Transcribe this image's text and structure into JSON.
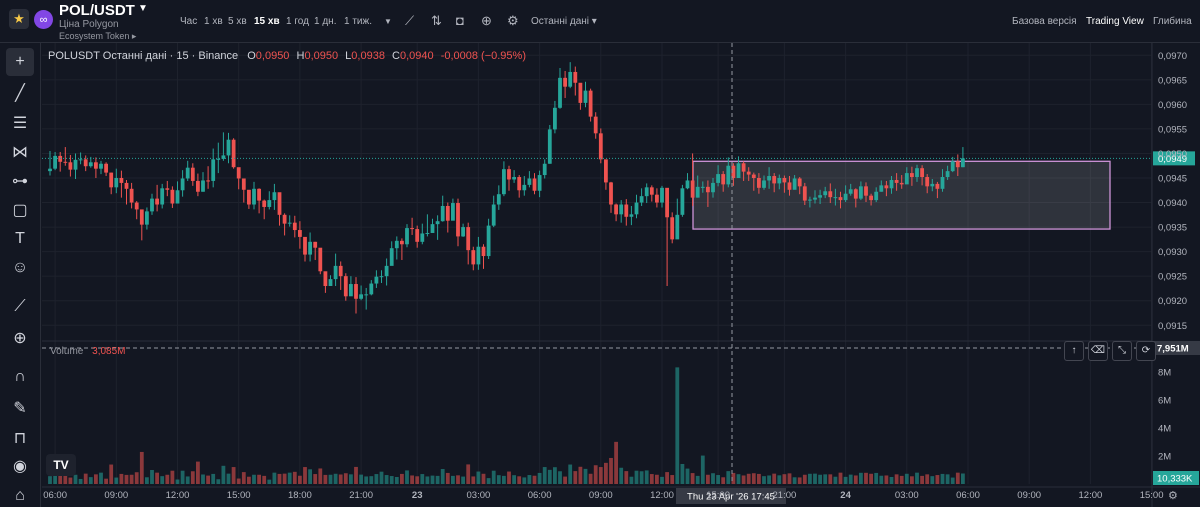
{
  "header": {
    "symbol": "POL/USDT",
    "subtitle": "Ціна Polygon",
    "ecosystem": "Ecosystem Token",
    "timeframes": [
      "Час",
      "1 хв",
      "5 хв",
      "15 хв",
      "1 год",
      "1 дн.",
      "1 тиж."
    ],
    "active_timeframe": "15 хв",
    "last_data": "Останні дані",
    "views": [
      "Базова версія",
      "Trading View",
      "Глибина"
    ],
    "active_view": "Trading View",
    "icons": [
      "star-icon",
      "polygon-logo-icon",
      "dropdown-icon",
      "indicators-icon",
      "compare-icon",
      "camera-icon",
      "add-icon",
      "settings-icon"
    ]
  },
  "legend": {
    "title": "POLUSDT Останні дані · 15 · Binance",
    "o_label": "O",
    "o_value": "0,0950",
    "h_label": "H",
    "h_value": "0,0950",
    "l_label": "L",
    "l_value": "0,0938",
    "c_label": "C",
    "c_value": "0,0940",
    "change": "-0,0008 (−0.95%)"
  },
  "volume_legend": {
    "label": "Volume",
    "value": "3,085M"
  },
  "toolbar": {
    "tools": [
      "crosshair-icon",
      "trendline-icon",
      "fib-icon",
      "pattern-icon",
      "forecast-icon",
      "rectangle-icon",
      "text-icon",
      "emoji-icon",
      "ruler-icon",
      "zoom-icon",
      "magnet-icon",
      "lock-draw-icon",
      "lock-icon",
      "eye-icon",
      "trash-icon"
    ]
  },
  "colors": {
    "up": "#26a69a",
    "down": "#ef5350",
    "background": "#131722",
    "grid": "#1e222d",
    "rect_fill": "rgba(255,255,255,0.12)",
    "rect_stroke": "#ce93d8"
  },
  "chart_data": {
    "type": "candlestick",
    "price_axis": {
      "ticks": [
        "0,0970",
        "0,0965",
        "0,0960",
        "0,0955",
        "0,0950",
        "0,0945",
        "0,0940",
        "0,0935",
        "0,0930",
        "0,0925",
        "0,0920",
        "0,0915"
      ],
      "range": [
        0.0912,
        0.09725
      ],
      "last_price_label": "0,0949",
      "last_price": 0.0949
    },
    "volume_axis": {
      "ticks": [
        "8M",
        "6M",
        "4M",
        "2M"
      ],
      "crosshair_value": "7,951M",
      "last_volume": "10,333K",
      "max": 9.0
    },
    "time_axis": {
      "ticks": [
        "06:00",
        "09:00",
        "12:00",
        "15:00",
        "18:00",
        "21:00",
        "23",
        "03:00",
        "06:00",
        "09:00",
        "12:00",
        "15:00",
        "21:00",
        "24",
        "03:00",
        "06:00",
        "09:00",
        "12:00",
        "15:00"
      ],
      "crosshair_label": "Thu 23 Apr '26   17:45"
    },
    "rectangle": {
      "price_top": 0.09484,
      "price_bottom": 0.09346
    },
    "candles": [
      {
        "c": 0.09469,
        "h": 0.09505,
        "l": 0.09455
      },
      {
        "c": 0.09495,
        "h": 0.09503,
        "l": 0.09466
      },
      {
        "c": 0.09483,
        "h": 0.09503,
        "l": 0.09463
      },
      {
        "c": 0.09482,
        "h": 0.09513,
        "l": 0.09475
      },
      {
        "c": 0.09467,
        "h": 0.09497,
        "l": 0.09453
      },
      {
        "c": 0.09487,
        "h": 0.095,
        "l": 0.09448
      },
      {
        "c": 0.09488,
        "h": 0.09502,
        "l": 0.09478
      },
      {
        "c": 0.09474,
        "h": 0.09496,
        "l": 0.09464
      },
      {
        "c": 0.09482,
        "h": 0.09493,
        "l": 0.09471
      },
      {
        "c": 0.09469,
        "h": 0.09492,
        "l": 0.0945
      },
      {
        "c": 0.09479,
        "h": 0.09485,
        "l": 0.09458
      },
      {
        "c": 0.09461,
        "h": 0.09482,
        "l": 0.09454
      },
      {
        "c": 0.09431,
        "h": 0.09461,
        "l": 0.09417
      },
      {
        "c": 0.0945,
        "h": 0.09469,
        "l": 0.09419
      },
      {
        "c": 0.0944,
        "h": 0.09465,
        "l": 0.0941
      },
      {
        "c": 0.09428,
        "h": 0.09446,
        "l": 0.09396
      },
      {
        "c": 0.094,
        "h": 0.0944,
        "l": 0.09388
      },
      {
        "c": 0.09386,
        "h": 0.09403,
        "l": 0.09366
      },
      {
        "c": 0.09355,
        "h": 0.09383,
        "l": 0.09323
      },
      {
        "c": 0.09382,
        "h": 0.0939,
        "l": 0.09345
      },
      {
        "c": 0.09408,
        "h": 0.09418,
        "l": 0.09375
      },
      {
        "c": 0.09396,
        "h": 0.09436,
        "l": 0.09382
      },
      {
        "c": 0.09429,
        "h": 0.09438,
        "l": 0.09388
      },
      {
        "c": 0.09426,
        "h": 0.09444,
        "l": 0.09413
      },
      {
        "c": 0.09398,
        "h": 0.09433,
        "l": 0.09389
      },
      {
        "c": 0.09425,
        "h": 0.09443,
        "l": 0.09409
      },
      {
        "c": 0.09449,
        "h": 0.09466,
        "l": 0.09412
      },
      {
        "c": 0.09471,
        "h": 0.09485,
        "l": 0.09444
      },
      {
        "c": 0.09444,
        "h": 0.0948,
        "l": 0.09434
      },
      {
        "c": 0.09422,
        "h": 0.09459,
        "l": 0.09413
      },
      {
        "c": 0.09445,
        "h": 0.09462,
        "l": 0.09422
      },
      {
        "c": 0.09444,
        "h": 0.09474,
        "l": 0.09428
      },
      {
        "c": 0.09488,
        "h": 0.0951,
        "l": 0.09431
      },
      {
        "c": 0.09489,
        "h": 0.09522,
        "l": 0.0946
      },
      {
        "c": 0.09496,
        "h": 0.09543,
        "l": 0.09485
      },
      {
        "c": 0.09528,
        "h": 0.09542,
        "l": 0.0948
      },
      {
        "c": 0.09472,
        "h": 0.09531,
        "l": 0.09469
      },
      {
        "c": 0.09449,
        "h": 0.09469,
        "l": 0.09427
      },
      {
        "c": 0.09426,
        "h": 0.09444,
        "l": 0.094
      },
      {
        "c": 0.09396,
        "h": 0.09422,
        "l": 0.09387
      },
      {
        "c": 0.09428,
        "h": 0.09442,
        "l": 0.09386
      },
      {
        "c": 0.09404,
        "h": 0.09429,
        "l": 0.09378
      },
      {
        "c": 0.09391,
        "h": 0.09406,
        "l": 0.09366
      },
      {
        "c": 0.09405,
        "h": 0.09423,
        "l": 0.09386
      },
      {
        "c": 0.09421,
        "h": 0.09438,
        "l": 0.09385
      },
      {
        "c": 0.09375,
        "h": 0.09419,
        "l": 0.09353
      },
      {
        "c": 0.09357,
        "h": 0.09378,
        "l": 0.09333
      },
      {
        "c": 0.09359,
        "h": 0.09374,
        "l": 0.09351
      },
      {
        "c": 0.09344,
        "h": 0.09373,
        "l": 0.09329
      },
      {
        "c": 0.0933,
        "h": 0.09362,
        "l": 0.09306
      },
      {
        "c": 0.09294,
        "h": 0.09328,
        "l": 0.0928
      },
      {
        "c": 0.0932,
        "h": 0.09339,
        "l": 0.0928
      },
      {
        "c": 0.09308,
        "h": 0.0932,
        "l": 0.09283
      },
      {
        "c": 0.0926,
        "h": 0.09301,
        "l": 0.09254
      },
      {
        "c": 0.0923,
        "h": 0.09259,
        "l": 0.09216
      },
      {
        "c": 0.09244,
        "h": 0.09252,
        "l": 0.09231
      },
      {
        "c": 0.09271,
        "h": 0.09296,
        "l": 0.0923
      },
      {
        "c": 0.0925,
        "h": 0.0928,
        "l": 0.09222
      },
      {
        "c": 0.09209,
        "h": 0.09256,
        "l": 0.092
      },
      {
        "c": 0.09234,
        "h": 0.0925,
        "l": 0.09215
      },
      {
        "c": 0.09204,
        "h": 0.09248,
        "l": 0.09174
      },
      {
        "c": 0.09213,
        "h": 0.09231,
        "l": 0.09201
      },
      {
        "c": 0.09213,
        "h": 0.09226,
        "l": 0.09182
      },
      {
        "c": 0.09235,
        "h": 0.09242,
        "l": 0.09211
      },
      {
        "c": 0.09249,
        "h": 0.09262,
        "l": 0.09226
      },
      {
        "c": 0.0925,
        "h": 0.09262,
        "l": 0.09236
      },
      {
        "c": 0.09271,
        "h": 0.09286,
        "l": 0.09231
      },
      {
        "c": 0.09307,
        "h": 0.09321,
        "l": 0.09278
      },
      {
        "c": 0.09322,
        "h": 0.09331,
        "l": 0.09284
      },
      {
        "c": 0.09315,
        "h": 0.09327,
        "l": 0.09283
      },
      {
        "c": 0.09348,
        "h": 0.09356,
        "l": 0.09309
      },
      {
        "c": 0.09346,
        "h": 0.09369,
        "l": 0.09334
      },
      {
        "c": 0.0932,
        "h": 0.09353,
        "l": 0.09308
      },
      {
        "c": 0.09337,
        "h": 0.09357,
        "l": 0.09315
      },
      {
        "c": 0.09338,
        "h": 0.09376,
        "l": 0.09331
      },
      {
        "c": 0.09356,
        "h": 0.09367,
        "l": 0.09346
      },
      {
        "c": 0.09362,
        "h": 0.09374,
        "l": 0.09324
      },
      {
        "c": 0.09393,
        "h": 0.09414,
        "l": 0.09361
      },
      {
        "c": 0.09363,
        "h": 0.094,
        "l": 0.09339
      },
      {
        "c": 0.09399,
        "h": 0.09408,
        "l": 0.09365
      },
      {
        "c": 0.09331,
        "h": 0.09408,
        "l": 0.09311
      },
      {
        "c": 0.0935,
        "h": 0.09357,
        "l": 0.0933
      },
      {
        "c": 0.09303,
        "h": 0.09359,
        "l": 0.09274
      },
      {
        "c": 0.09274,
        "h": 0.0931,
        "l": 0.09262
      },
      {
        "c": 0.0931,
        "h": 0.0933,
        "l": 0.09263
      },
      {
        "c": 0.09291,
        "h": 0.09315,
        "l": 0.09265
      },
      {
        "c": 0.09353,
        "h": 0.09367,
        "l": 0.09285
      },
      {
        "c": 0.09396,
        "h": 0.09414,
        "l": 0.0935
      },
      {
        "c": 0.09417,
        "h": 0.09435,
        "l": 0.09385
      },
      {
        "c": 0.09468,
        "h": 0.09484,
        "l": 0.09413
      },
      {
        "c": 0.09447,
        "h": 0.09475,
        "l": 0.09424
      },
      {
        "c": 0.09452,
        "h": 0.09466,
        "l": 0.0944
      },
      {
        "c": 0.09425,
        "h": 0.09456,
        "l": 0.0941
      },
      {
        "c": 0.09436,
        "h": 0.09454,
        "l": 0.09414
      },
      {
        "c": 0.09449,
        "h": 0.09464,
        "l": 0.09431
      },
      {
        "c": 0.09424,
        "h": 0.0946,
        "l": 0.09417
      },
      {
        "c": 0.09456,
        "h": 0.09465,
        "l": 0.09411
      },
      {
        "c": 0.09479,
        "h": 0.09488,
        "l": 0.09449
      },
      {
        "c": 0.09549,
        "h": 0.09558,
        "l": 0.09479
      },
      {
        "c": 0.09593,
        "h": 0.09607,
        "l": 0.09541
      },
      {
        "c": 0.09654,
        "h": 0.09674,
        "l": 0.09591
      },
      {
        "c": 0.09636,
        "h": 0.09668,
        "l": 0.09613
      },
      {
        "c": 0.09666,
        "h": 0.09686,
        "l": 0.09633
      },
      {
        "c": 0.09644,
        "h": 0.09677,
        "l": 0.09618
      },
      {
        "c": 0.09603,
        "h": 0.09642,
        "l": 0.09589
      },
      {
        "c": 0.09628,
        "h": 0.09646,
        "l": 0.09594
      },
      {
        "c": 0.09575,
        "h": 0.09632,
        "l": 0.09565
      },
      {
        "c": 0.09541,
        "h": 0.09584,
        "l": 0.0953
      },
      {
        "c": 0.09488,
        "h": 0.09551,
        "l": 0.0948
      },
      {
        "c": 0.09441,
        "h": 0.09485,
        "l": 0.09426
      },
      {
        "c": 0.09396,
        "h": 0.09442,
        "l": 0.09379
      },
      {
        "c": 0.09376,
        "h": 0.09398,
        "l": 0.09362
      },
      {
        "c": 0.09396,
        "h": 0.09405,
        "l": 0.09359
      },
      {
        "c": 0.09371,
        "h": 0.09407,
        "l": 0.09353
      },
      {
        "c": 0.09376,
        "h": 0.09393,
        "l": 0.09354
      },
      {
        "c": 0.094,
        "h": 0.09416,
        "l": 0.09368
      },
      {
        "c": 0.09413,
        "h": 0.09429,
        "l": 0.09393
      },
      {
        "c": 0.09431,
        "h": 0.09439,
        "l": 0.09399
      },
      {
        "c": 0.09416,
        "h": 0.09435,
        "l": 0.09402
      },
      {
        "c": 0.094,
        "h": 0.09429,
        "l": 0.0939
      },
      {
        "c": 0.0943,
        "h": 0.09434,
        "l": 0.0939
      },
      {
        "c": 0.0937,
        "h": 0.09424,
        "l": 0.0923
      },
      {
        "c": 0.09325,
        "h": 0.0938,
        "l": 0.09317
      },
      {
        "c": 0.09375,
        "h": 0.09408,
        "l": 0.09364
      },
      {
        "c": 0.09429,
        "h": 0.09436,
        "l": 0.09371
      },
      {
        "c": 0.09445,
        "h": 0.0946,
        "l": 0.09427
      },
      {
        "c": 0.0941,
        "h": 0.095,
        "l": 0.09393
      },
      {
        "c": 0.09432,
        "h": 0.09455,
        "l": 0.0941
      },
      {
        "c": 0.09432,
        "h": 0.09443,
        "l": 0.0942
      },
      {
        "c": 0.09421,
        "h": 0.09445,
        "l": 0.09391
      },
      {
        "c": 0.0944,
        "h": 0.0945,
        "l": 0.0941
      },
      {
        "c": 0.09458,
        "h": 0.09476,
        "l": 0.09433
      },
      {
        "c": 0.09437,
        "h": 0.09464,
        "l": 0.09422
      },
      {
        "c": 0.09475,
        "h": 0.09492,
        "l": 0.09431
      },
      {
        "c": 0.0945,
        "h": 0.0948,
        "l": 0.09434
      },
      {
        "c": 0.0948,
        "h": 0.09494,
        "l": 0.09469
      },
      {
        "c": 0.09463,
        "h": 0.09484,
        "l": 0.09444
      },
      {
        "c": 0.09457,
        "h": 0.09472,
        "l": 0.09444
      },
      {
        "c": 0.0945,
        "h": 0.09461,
        "l": 0.09424
      },
      {
        "c": 0.0943,
        "h": 0.0946,
        "l": 0.09418
      },
      {
        "c": 0.09445,
        "h": 0.09455,
        "l": 0.09426
      },
      {
        "c": 0.09454,
        "h": 0.09472,
        "l": 0.09428
      },
      {
        "c": 0.09439,
        "h": 0.0946,
        "l": 0.09421
      },
      {
        "c": 0.0945,
        "h": 0.09457,
        "l": 0.09427
      },
      {
        "c": 0.09441,
        "h": 0.09455,
        "l": 0.0942
      },
      {
        "c": 0.09426,
        "h": 0.09454,
        "l": 0.09414
      },
      {
        "c": 0.09449,
        "h": 0.09456,
        "l": 0.09437
      },
      {
        "c": 0.09433,
        "h": 0.09452,
        "l": 0.09417
      },
      {
        "c": 0.09404,
        "h": 0.0944,
        "l": 0.09395
      },
      {
        "c": 0.09406,
        "h": 0.09412,
        "l": 0.0939
      },
      {
        "c": 0.0941,
        "h": 0.09425,
        "l": 0.09398
      },
      {
        "c": 0.09415,
        "h": 0.09426,
        "l": 0.09397
      },
      {
        "c": 0.09423,
        "h": 0.09432,
        "l": 0.09409
      },
      {
        "c": 0.09411,
        "h": 0.09439,
        "l": 0.09399
      },
      {
        "c": 0.09411,
        "h": 0.09428,
        "l": 0.09394
      },
      {
        "c": 0.09405,
        "h": 0.09422,
        "l": 0.09388
      },
      {
        "c": 0.09418,
        "h": 0.09435,
        "l": 0.09401
      },
      {
        "c": 0.09427,
        "h": 0.09438,
        "l": 0.09414
      },
      {
        "c": 0.09408,
        "h": 0.09429,
        "l": 0.0939
      },
      {
        "c": 0.09433,
        "h": 0.09443,
        "l": 0.09405
      },
      {
        "c": 0.09414,
        "h": 0.09441,
        "l": 0.09401
      },
      {
        "c": 0.09405,
        "h": 0.09418,
        "l": 0.09394
      },
      {
        "c": 0.09422,
        "h": 0.09431,
        "l": 0.09401
      },
      {
        "c": 0.09435,
        "h": 0.09445,
        "l": 0.09422
      },
      {
        "c": 0.09429,
        "h": 0.09444,
        "l": 0.09413
      },
      {
        "c": 0.09446,
        "h": 0.09454,
        "l": 0.09418
      },
      {
        "c": 0.0944,
        "h": 0.0946,
        "l": 0.09424
      },
      {
        "c": 0.09437,
        "h": 0.09456,
        "l": 0.09428
      },
      {
        "c": 0.0946,
        "h": 0.09472,
        "l": 0.09441
      },
      {
        "c": 0.09452,
        "h": 0.09473,
        "l": 0.09434
      },
      {
        "c": 0.0947,
        "h": 0.09477,
        "l": 0.09442
      },
      {
        "c": 0.09452,
        "h": 0.09476,
        "l": 0.09435
      },
      {
        "c": 0.09433,
        "h": 0.09458,
        "l": 0.09419
      },
      {
        "c": 0.09438,
        "h": 0.09448,
        "l": 0.09423
      },
      {
        "c": 0.09428,
        "h": 0.09442,
        "l": 0.09409
      },
      {
        "c": 0.09452,
        "h": 0.09468,
        "l": 0.09422
      },
      {
        "c": 0.09464,
        "h": 0.09475,
        "l": 0.09446
      },
      {
        "c": 0.09484,
        "h": 0.09493,
        "l": 0.09462
      },
      {
        "c": 0.09472,
        "h": 0.09498,
        "l": 0.09454
      },
      {
        "c": 0.0949,
        "h": 0.09513,
        "l": 0.09472
      }
    ],
    "volumes": [
      0.56,
      1.34,
      1.11,
      1.25,
      0.46,
      0.66,
      0.36,
      0.74,
      0.49,
      0.69,
      0.81,
      0.38,
      1.39,
      0.46,
      0.72,
      0.65,
      0.66,
      0.84,
      2.29,
      0.48,
      1.0,
      0.81,
      0.56,
      0.66,
      0.95,
      0.32,
      0.95,
      0.54,
      0.91,
      1.6,
      0.68,
      0.6,
      0.72,
      0.34,
      1.3,
      0.74,
      1.21,
      0.39,
      0.85,
      0.52,
      0.66,
      0.66,
      0.58,
      0.31,
      0.81,
      0.72,
      0.74,
      0.81,
      0.87,
      0.59,
      1.21,
      1.05,
      0.71,
      1.11,
      0.65,
      0.66,
      0.73,
      0.68,
      0.77,
      0.69,
      1.22,
      0.67,
      0.54,
      0.56,
      0.71,
      0.88,
      0.64,
      0.57,
      0.5,
      0.72,
      0.97,
      0.61,
      0.55,
      0.71,
      0.54,
      0.6,
      0.58,
      1.07,
      0.79,
      0.58,
      0.62,
      0.53,
      1.4,
      0.54,
      0.89,
      0.73,
      0.42,
      0.95,
      0.63,
      0.58,
      0.89,
      0.63,
      0.55,
      0.47,
      0.64,
      0.59,
      0.79,
      1.21,
      1.01,
      1.2,
      0.91,
      0.53,
      1.39,
      0.92,
      1.23,
      1.08,
      0.73,
      1.34,
      1.21,
      1.51,
      1.86,
      3.01,
      1.16,
      0.92,
      0.52,
      0.95,
      0.91,
      0.97,
      0.71,
      0.66,
      0.51,
      0.85,
      0.64,
      8.33,
      1.43,
      1.1,
      0.78,
      0.58,
      2.03,
      0.66,
      0.77,
      0.64,
      0.48,
      0.92,
      0.79,
      0.7,
      0.61,
      0.73,
      0.77,
      0.72,
      0.56,
      0.61,
      0.74,
      0.62,
      0.7,
      0.76,
      0.48,
      0.47,
      0.66,
      0.73,
      0.74,
      0.66,
      0.69,
      0.69,
      0.52,
      0.81,
      0.51,
      0.67,
      0.61,
      0.8,
      0.8,
      0.73,
      0.79,
      0.59,
      0.61,
      0.5,
      0.69,
      0.58,
      0.73,
      0.55,
      0.81,
      0.58,
      0.69,
      0.56,
      0.64,
      0.72,
      0.69,
      0.46,
      0.81,
      0.75,
      0.61,
      0.82,
      0.39,
      0.69,
      0.48
    ]
  }
}
